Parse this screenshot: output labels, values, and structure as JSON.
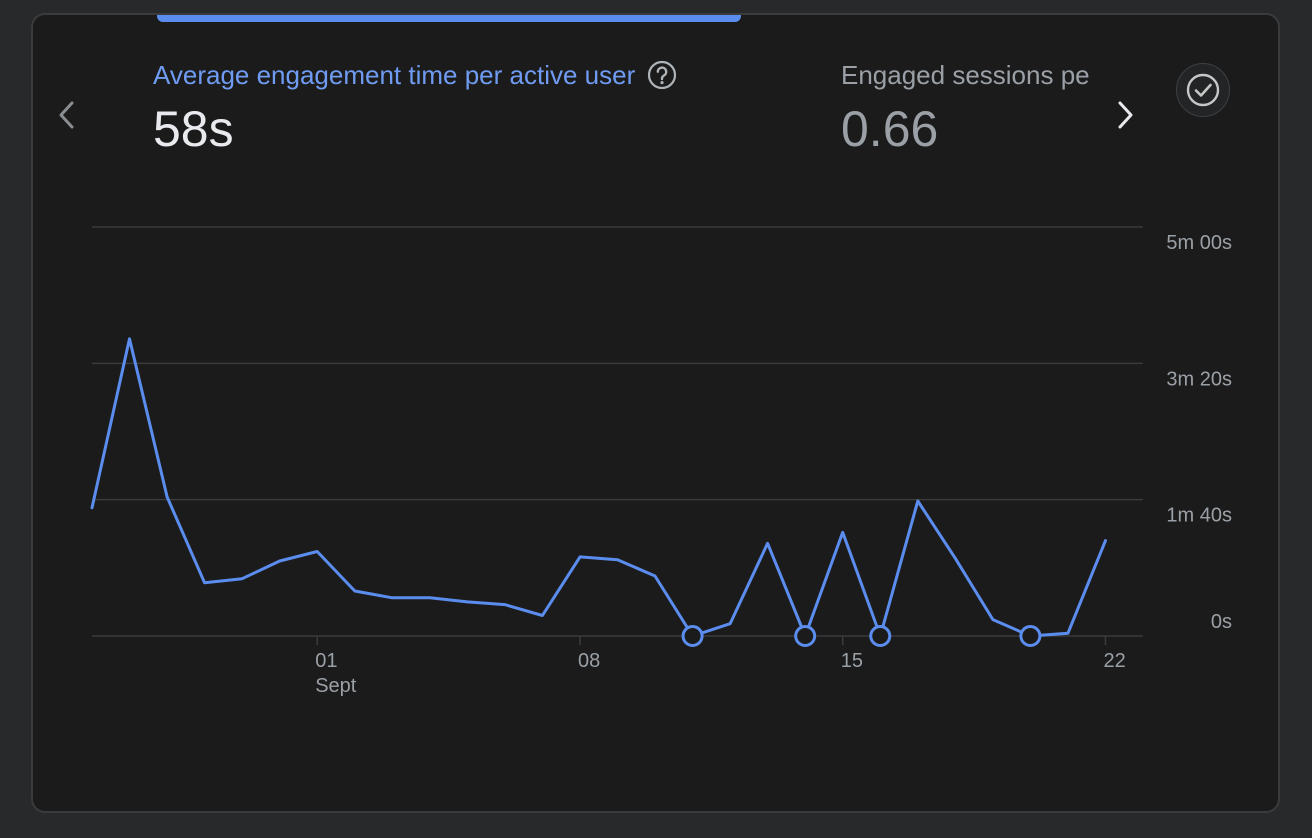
{
  "nav": {
    "prev_icon": "chevron-left-icon",
    "next_icon": "chevron-right-icon"
  },
  "metrics": [
    {
      "title": "Average engagement time per active user",
      "value": "58s",
      "selected": true,
      "help_icon": "help-circle-icon"
    },
    {
      "title": "Engaged sessions per active user",
      "value": "0.66",
      "selected": false
    }
  ],
  "check_icon": "check-circle-icon",
  "colors": {
    "accent": "#5b8def",
    "line": "#5b8def",
    "grid": "#3a3b3d",
    "text_muted": "#9aa0a6",
    "card_bg": "#1b1b1b"
  },
  "chart_data": {
    "type": "line",
    "x_unit": "day",
    "x_range": [
      "2023-08-26",
      "2023-09-23"
    ],
    "x_ticks": [
      {
        "date": "2023-09-01",
        "label": "01",
        "sublabel": "Sept"
      },
      {
        "date": "2023-09-08",
        "label": "08",
        "sublabel": ""
      },
      {
        "date": "2023-09-15",
        "label": "15",
        "sublabel": ""
      },
      {
        "date": "2023-09-22",
        "label": "22",
        "sublabel": ""
      }
    ],
    "y_unit": "seconds",
    "ylim": [
      0,
      300
    ],
    "y_ticks": [
      {
        "value": 0,
        "label": "0s"
      },
      {
        "value": 100,
        "label": "1m 40s"
      },
      {
        "value": 200,
        "label": "3m 20s"
      },
      {
        "value": 300,
        "label": "5m 00s"
      }
    ],
    "y_axis_position": "right",
    "grid": true,
    "legend": false,
    "series": [
      {
        "color": "#5b8def",
        "points": [
          {
            "x": "2023-08-26",
            "y": 94
          },
          {
            "x": "2023-08-27",
            "y": 218
          },
          {
            "x": "2023-08-28",
            "y": 102
          },
          {
            "x": "2023-08-29",
            "y": 39
          },
          {
            "x": "2023-08-30",
            "y": 42
          },
          {
            "x": "2023-08-31",
            "y": 55
          },
          {
            "x": "2023-09-01",
            "y": 62
          },
          {
            "x": "2023-09-02",
            "y": 33
          },
          {
            "x": "2023-09-03",
            "y": 28
          },
          {
            "x": "2023-09-04",
            "y": 28
          },
          {
            "x": "2023-09-05",
            "y": 25
          },
          {
            "x": "2023-09-06",
            "y": 23
          },
          {
            "x": "2023-09-07",
            "y": 15
          },
          {
            "x": "2023-09-08",
            "y": 58
          },
          {
            "x": "2023-09-09",
            "y": 56
          },
          {
            "x": "2023-09-10",
            "y": 44
          },
          {
            "x": "2023-09-11",
            "y": 0,
            "marker": true
          },
          {
            "x": "2023-09-12",
            "y": 9
          },
          {
            "x": "2023-09-13",
            "y": 68
          },
          {
            "x": "2023-09-14",
            "y": 0,
            "marker": true
          },
          {
            "x": "2023-09-15",
            "y": 76
          },
          {
            "x": "2023-09-16",
            "y": 0,
            "marker": true
          },
          {
            "x": "2023-09-17",
            "y": 99
          },
          {
            "x": "2023-09-18",
            "y": 57
          },
          {
            "x": "2023-09-19",
            "y": 12
          },
          {
            "x": "2023-09-20",
            "y": 0,
            "marker": true
          },
          {
            "x": "2023-09-21",
            "y": 2
          },
          {
            "x": "2023-09-22",
            "y": 70
          }
        ]
      }
    ]
  }
}
